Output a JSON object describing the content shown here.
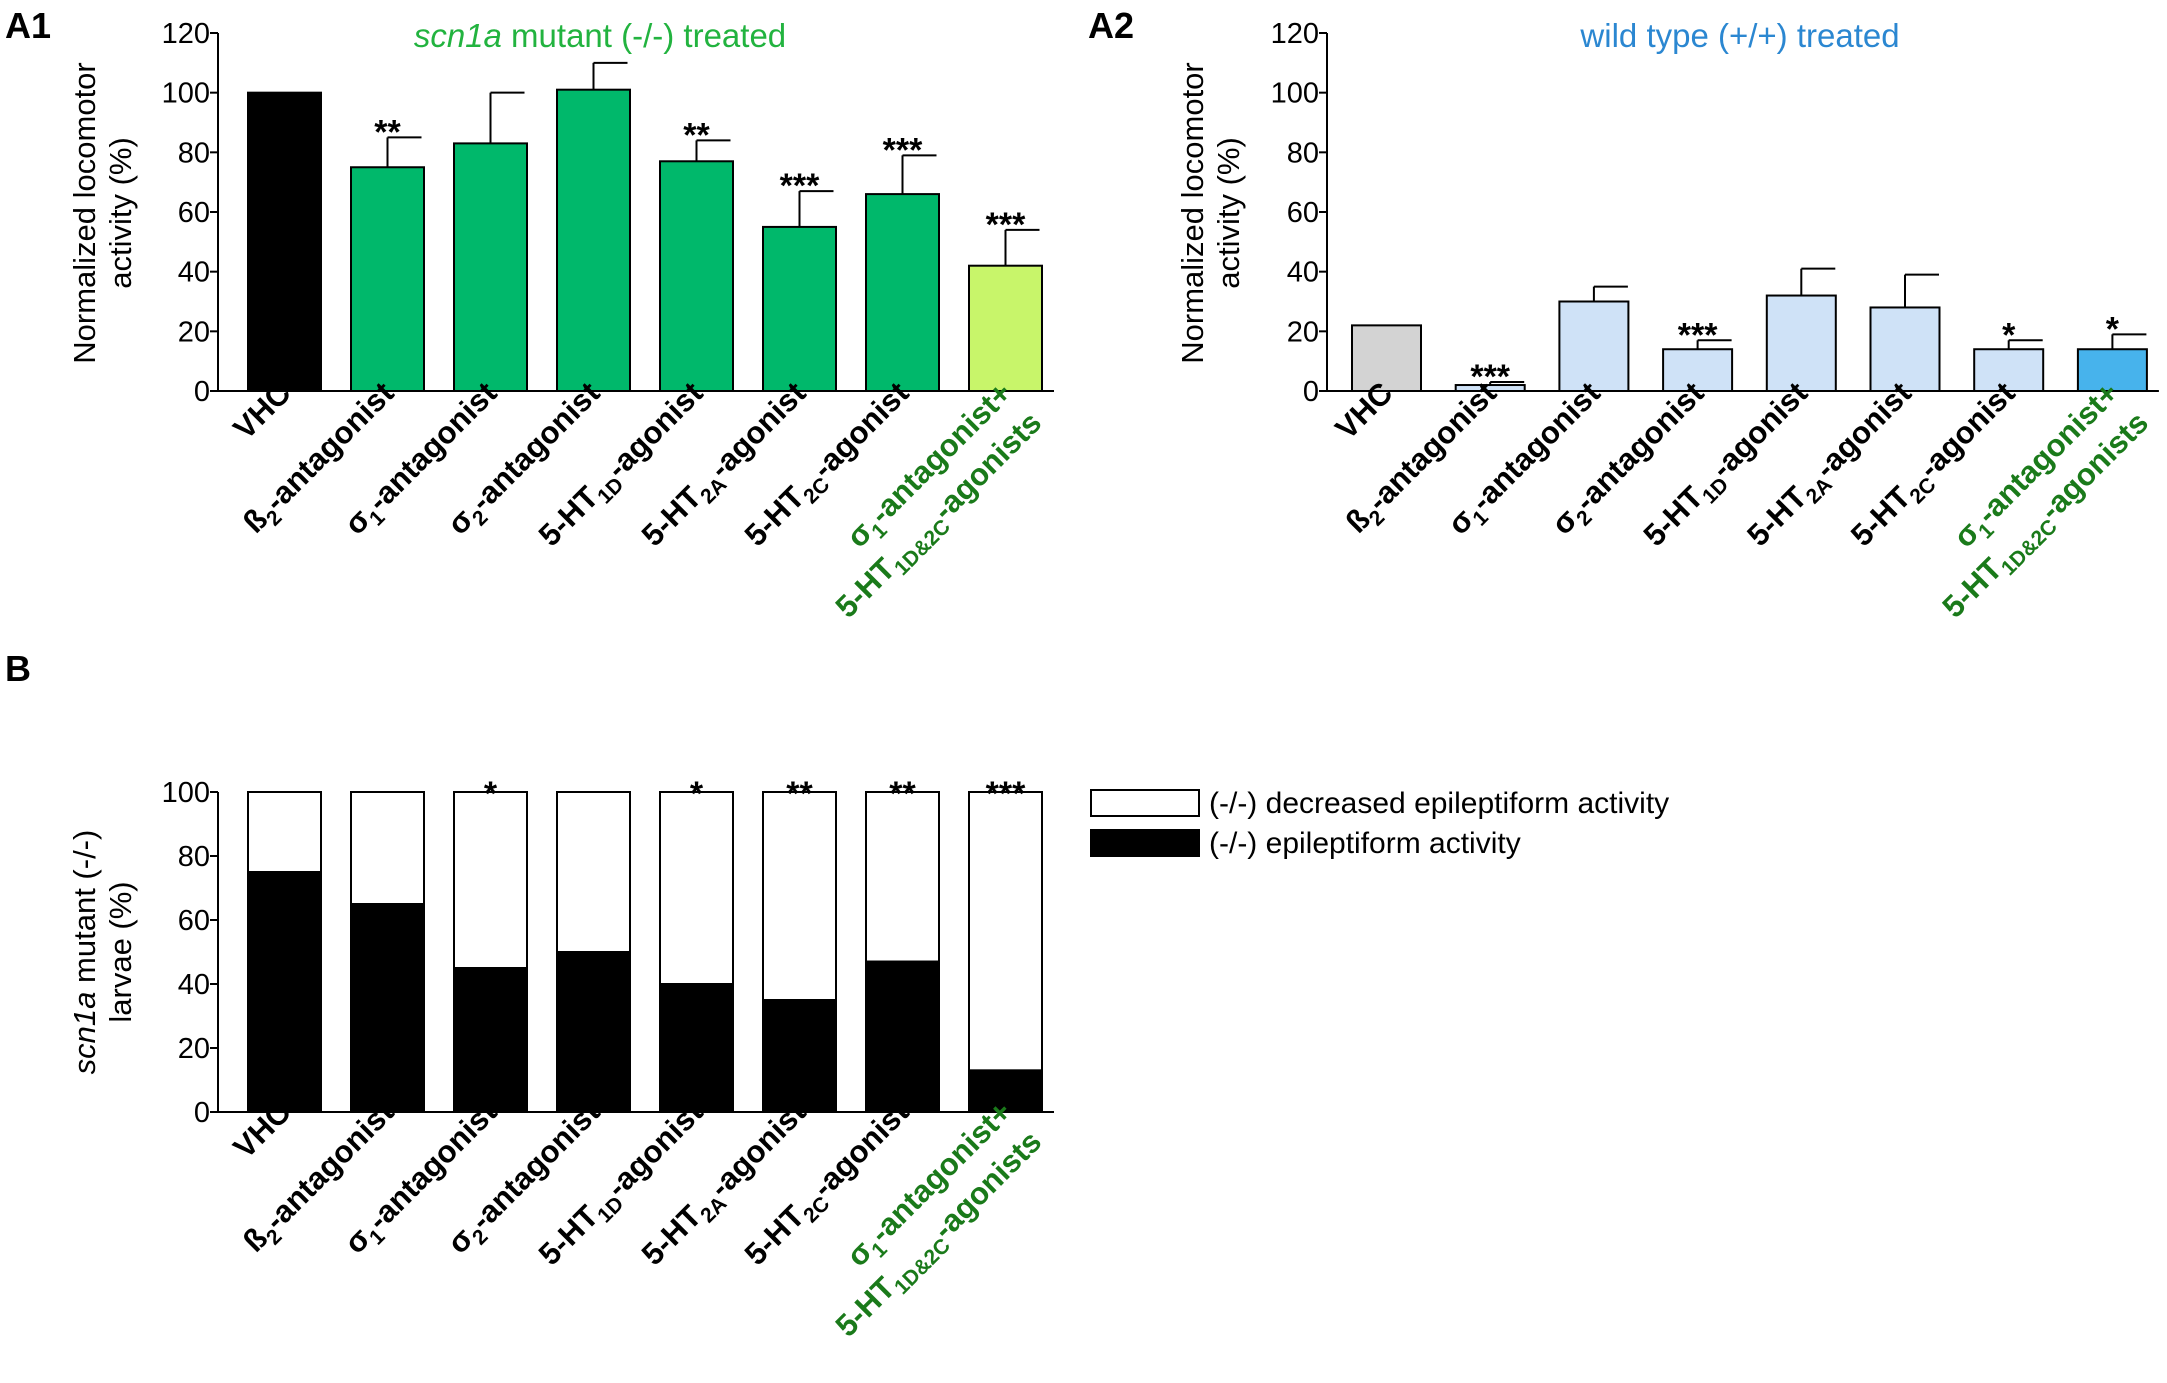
{
  "colors": {
    "black": "#000000",
    "scn_green": "#00b86b",
    "lime": "#c8f56a",
    "title_green": "#22b33f",
    "label_green": "#1a7a1a",
    "wt_gray": "#d3d3d3",
    "wt_light_blue": "#cfe2f7",
    "wt_blue": "#47b3ec",
    "title_blue": "#2b87d1"
  },
  "chart_data": [
    {
      "id": "A1",
      "type": "bar",
      "panel_label": "A1",
      "title_italic": "scn1a",
      "title_rest": " mutant  (-/-) treated",
      "ylabel_lines": [
        "Normalized locomotor",
        "activity (%)"
      ],
      "ylim": [
        0,
        120
      ],
      "yticks": [
        0,
        20,
        40,
        60,
        80,
        100,
        120
      ],
      "series": [
        {
          "name": "scn1a mutant (-/-) treated",
          "values": [
            100,
            75,
            83,
            101,
            77,
            55,
            66,
            42
          ],
          "errors": [
            0,
            10,
            17,
            9,
            7,
            12,
            13,
            12
          ],
          "colors": [
            "black",
            "scn_green",
            "scn_green",
            "scn_green",
            "scn_green",
            "scn_green",
            "scn_green",
            "lime"
          ],
          "significance": [
            "",
            "**",
            "",
            "",
            "**",
            "***",
            "***",
            "***"
          ]
        }
      ]
    },
    {
      "id": "A2",
      "type": "bar",
      "panel_label": "A2",
      "title_rest": "wild type  (+/+) treated",
      "ylabel_lines": [
        "Normalized locomotor",
        "activity (%)"
      ],
      "ylim": [
        0,
        120
      ],
      "yticks": [
        0,
        20,
        40,
        60,
        80,
        100,
        120
      ],
      "series": [
        {
          "name": "wild type (+/+) treated",
          "values": [
            22,
            2,
            30,
            14,
            32,
            28,
            14,
            14
          ],
          "errors": [
            0,
            1,
            5,
            3,
            9,
            11,
            3,
            5
          ],
          "colors": [
            "wt_gray",
            "wt_light_blue",
            "wt_light_blue",
            "wt_light_blue",
            "wt_light_blue",
            "wt_light_blue",
            "wt_light_blue",
            "wt_blue"
          ],
          "significance": [
            "",
            "***",
            "",
            "***",
            "",
            "",
            "*",
            "*"
          ]
        }
      ]
    },
    {
      "id": "B",
      "type": "bar",
      "stacked": true,
      "panel_label": "B",
      "ylabel_italic": "scn1a",
      "ylabel_line1_rest": " mutant (-/-)",
      "ylabel_line2": "larvae (%)",
      "ylim": [
        0,
        100
      ],
      "yticks": [
        0,
        20,
        40,
        60,
        80,
        100
      ],
      "legend_position": "top-right",
      "series": [
        {
          "name": "(-/-) epileptiform activity",
          "color": "black",
          "values": [
            75,
            65,
            45,
            50,
            40,
            35,
            47,
            13
          ]
        },
        {
          "name": "(-/-) decreased epileptiform activity",
          "color": "white",
          "values": [
            25,
            35,
            55,
            50,
            60,
            65,
            53,
            87
          ]
        }
      ],
      "significance": [
        "",
        "",
        "*",
        "",
        "*",
        "**",
        "**",
        "***"
      ]
    }
  ],
  "categories": [
    {
      "parts": [
        {
          "t": "VHC"
        }
      ]
    },
    {
      "parts": [
        {
          "t": "ß"
        },
        {
          "t": "2",
          "sub": true
        },
        {
          "t": "-antagonist"
        }
      ]
    },
    {
      "parts": [
        {
          "t": "σ"
        },
        {
          "t": "1",
          "sub": true
        },
        {
          "t": "-antagonist"
        }
      ]
    },
    {
      "parts": [
        {
          "t": "σ"
        },
        {
          "t": "2",
          "sub": true
        },
        {
          "t": "-antagonist"
        }
      ]
    },
    {
      "parts": [
        {
          "t": "5-HT"
        },
        {
          "t": "1D",
          "sub": true
        },
        {
          "t": "-agonist"
        }
      ]
    },
    {
      "parts": [
        {
          "t": "5-HT"
        },
        {
          "t": "2A",
          "sub": true
        },
        {
          "t": "-agonist"
        }
      ]
    },
    {
      "parts": [
        {
          "t": "5-HT"
        },
        {
          "t": "2C",
          "sub": true
        },
        {
          "t": "-agonist"
        }
      ]
    },
    {
      "green": true,
      "parts": [
        {
          "t": "σ"
        },
        {
          "t": "1",
          "sub": true
        },
        {
          "t": "-antagonist+"
        }
      ],
      "parts2": [
        {
          "t": "5-HT"
        },
        {
          "t": "1D&2C",
          "sub": true
        },
        {
          "t": "-agonists"
        }
      ]
    }
  ]
}
